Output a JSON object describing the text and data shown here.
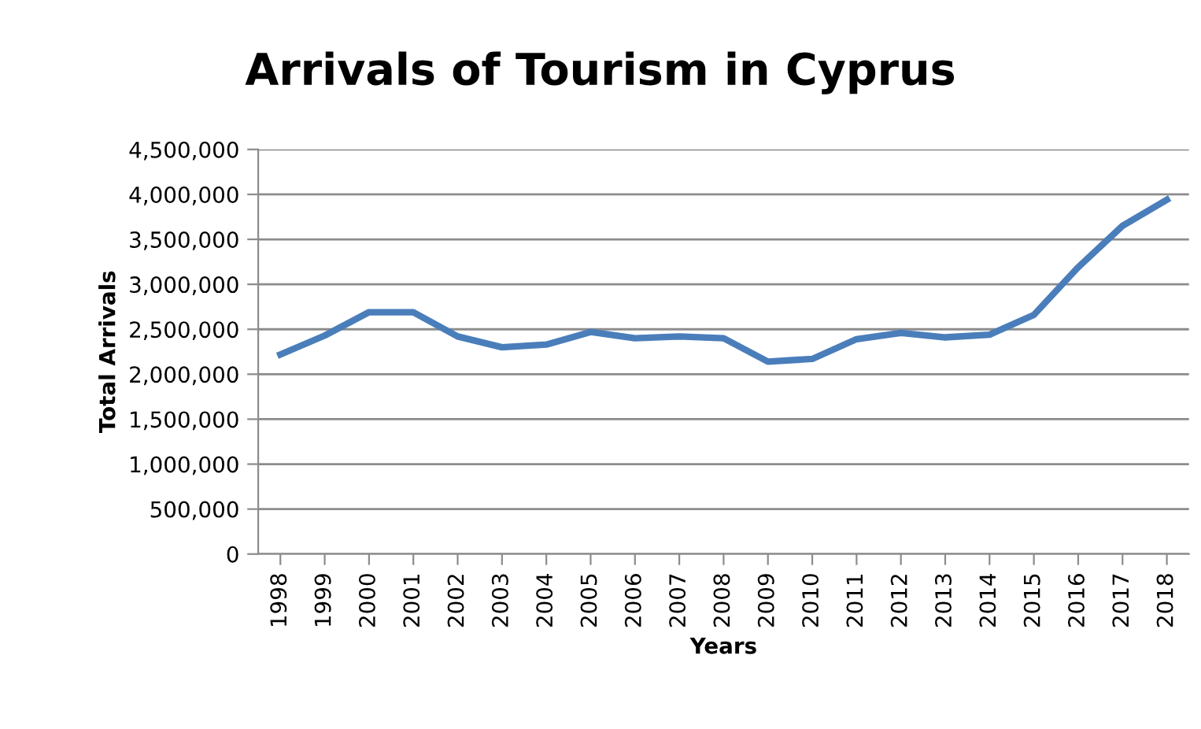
{
  "chart_data": {
    "type": "line",
    "title": "Arrivals of Tourism in Cyprus",
    "xlabel": "Years",
    "ylabel": "Total Arrivals",
    "categories": [
      "1998",
      "1999",
      "2000",
      "2001",
      "2002",
      "2003",
      "2004",
      "2005",
      "2006",
      "2007",
      "2008",
      "2009",
      "2010",
      "2011",
      "2012",
      "2013",
      "2014",
      "2015",
      "2016",
      "2017",
      "2018"
    ],
    "series": [
      {
        "color": "#4a7ebb",
        "values": [
          2220000,
          2430000,
          2690000,
          2690000,
          2420000,
          2300000,
          2330000,
          2470000,
          2400000,
          2420000,
          2400000,
          2140000,
          2170000,
          2390000,
          2460000,
          2410000,
          2440000,
          2660000,
          3190000,
          3650000,
          3940000
        ]
      }
    ],
    "ylim": [
      0,
      4500000
    ],
    "yticks": [
      {
        "value": 0,
        "label": "0"
      },
      {
        "value": 500000,
        "label": "500,000"
      },
      {
        "value": 1000000,
        "label": "1,000,000"
      },
      {
        "value": 1500000,
        "label": "1,500,000"
      },
      {
        "value": 2000000,
        "label": "2,000,000"
      },
      {
        "value": 2500000,
        "label": "2,500,000"
      },
      {
        "value": 3000000,
        "label": "3,000,000"
      },
      {
        "value": 3500000,
        "label": "3,500,000"
      },
      {
        "value": 4000000,
        "label": "4,000,000"
      },
      {
        "value": 4500000,
        "label": "4,500,000"
      }
    ],
    "grid": "y",
    "legend": false,
    "marker": "none",
    "line_style": "solid"
  }
}
